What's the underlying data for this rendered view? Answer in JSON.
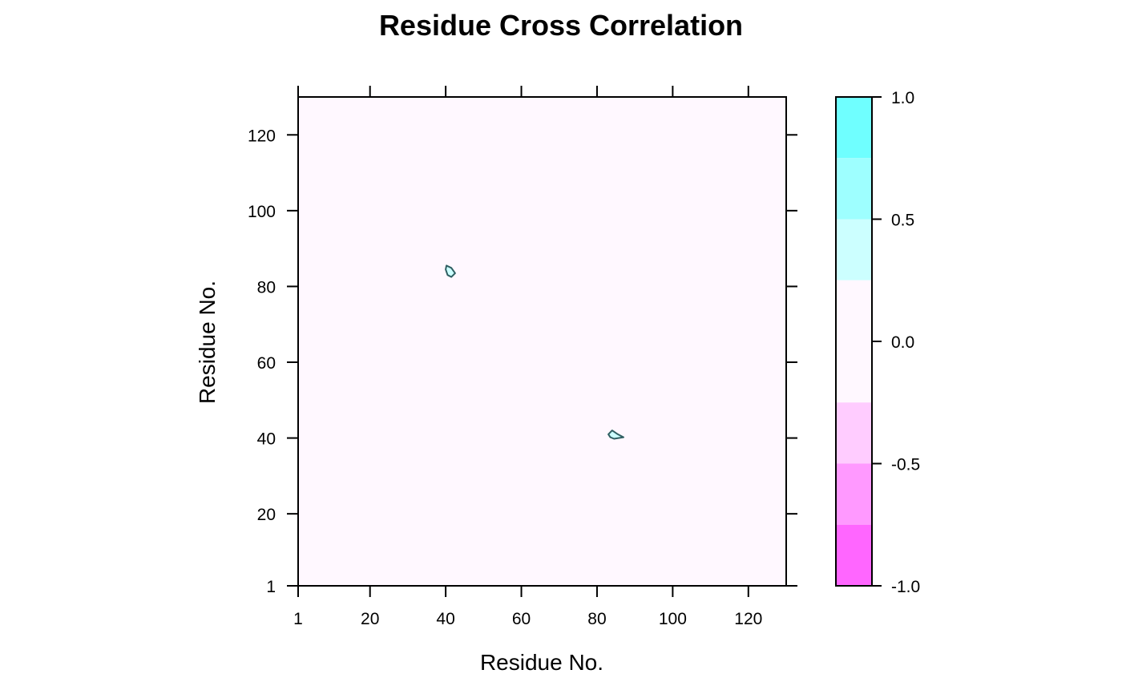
{
  "chart_data": {
    "type": "heatmap",
    "title": "Residue Cross Correlation",
    "xlabel": "Residue No.",
    "ylabel": "Residue No.",
    "xlim": [
      1,
      130
    ],
    "ylim": [
      1,
      130
    ],
    "x_ticks": [
      1,
      20,
      40,
      60,
      80,
      100,
      120
    ],
    "y_ticks": [
      1,
      20,
      40,
      60,
      80,
      100,
      120
    ],
    "background_level": 0.0,
    "background_color": "#FFF8FF",
    "contour_regions": [
      {
        "fill": "#CCFFFF",
        "outline_color": "#2F5F62",
        "points": [
          [
            40.2,
            85.5
          ],
          [
            41.5,
            84.9
          ],
          [
            42.5,
            83.5
          ],
          [
            41.5,
            82.5
          ],
          [
            40.5,
            83.0
          ],
          [
            40.0,
            84.5
          ]
        ]
      },
      {
        "fill": "#CCFFFF",
        "outline_color": "#2F5F62",
        "points": [
          [
            83.0,
            41.0
          ],
          [
            84.0,
            42.0
          ],
          [
            85.5,
            41.0
          ],
          [
            87.0,
            40.2
          ],
          [
            84.5,
            39.8
          ],
          [
            83.5,
            40.2
          ]
        ]
      }
    ],
    "colorkey": {
      "ticks": [
        "1.0",
        "0.5",
        "0.0",
        "-0.5",
        "-1.0"
      ],
      "tick_values": [
        1.0,
        0.5,
        0.0,
        -0.5,
        -1.0
      ],
      "range": [
        -1.0,
        1.0
      ],
      "bands": [
        {
          "from": 0.75,
          "to": 1.0,
          "color": "#6FFFFF"
        },
        {
          "from": 0.5,
          "to": 0.75,
          "color": "#9EFFFF"
        },
        {
          "from": 0.25,
          "to": 0.5,
          "color": "#CCFFFF"
        },
        {
          "from": -0.25,
          "to": 0.25,
          "color": "#FFF8FF"
        },
        {
          "from": -0.5,
          "to": -0.25,
          "color": "#FFCCFF"
        },
        {
          "from": -0.75,
          "to": -0.5,
          "color": "#FF99FF"
        },
        {
          "from": -1.0,
          "to": -0.75,
          "color": "#FF66FF"
        }
      ]
    }
  }
}
